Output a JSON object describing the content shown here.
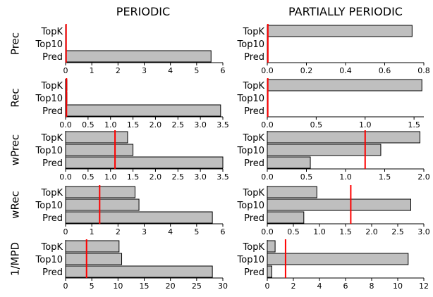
{
  "columns": [
    "PERIODIC",
    "PARTIALLY PERIODIC"
  ],
  "row_labels": [
    "Prec",
    "Rec",
    "wPrec",
    "wRec",
    "1/MPD"
  ],
  "colors": {
    "bar_fill": "#bfbfbf",
    "bar_stroke": "#000000",
    "marker": "#ff0000"
  },
  "chart_data": [
    {
      "type": "bar",
      "orientation": "horizontal",
      "row_label": "Prec",
      "column": "PERIODIC",
      "categories": [
        "TopK",
        "Top10",
        "Pred"
      ],
      "values": [
        0,
        0,
        5.55
      ],
      "reference_line": 0.02,
      "xlim": [
        0,
        6
      ],
      "ticks": [
        0,
        1,
        2,
        3,
        4,
        5,
        6
      ],
      "tick_labels": [
        "0",
        "1",
        "2",
        "3",
        "4",
        "5",
        "6"
      ]
    },
    {
      "type": "bar",
      "orientation": "horizontal",
      "row_label": "Prec",
      "column": "PARTIALLY PERIODIC",
      "categories": [
        "TopK",
        "Top10",
        "Pred"
      ],
      "values": [
        0.74,
        0,
        0
      ],
      "reference_line": 0.003,
      "xlim": [
        0,
        0.8
      ],
      "ticks": [
        0,
        0.2,
        0.4,
        0.6,
        0.8
      ],
      "tick_labels": [
        "0.0",
        "0.2",
        "0.4",
        "0.6",
        "0.8"
      ]
    },
    {
      "type": "bar",
      "orientation": "horizontal",
      "row_label": "Rec",
      "column": "PERIODIC",
      "categories": [
        "TopK",
        "Top10",
        "Pred"
      ],
      "values": [
        0.03,
        0.03,
        3.45
      ],
      "reference_line": 0.02,
      "xlim": [
        0,
        3.5
      ],
      "ticks": [
        0,
        0.5,
        1,
        1.5,
        2,
        2.5,
        3,
        3.5
      ],
      "tick_labels": [
        "0.0",
        "0.5",
        "1.0",
        "1.5",
        "2.0",
        "2.5",
        "3.0",
        "3.5"
      ]
    },
    {
      "type": "bar",
      "orientation": "horizontal",
      "row_label": "Rec",
      "column": "PARTIALLY PERIODIC",
      "categories": [
        "TopK",
        "Top10",
        "Pred"
      ],
      "values": [
        1.58,
        0,
        0
      ],
      "reference_line": 0.005,
      "xlim": [
        0,
        1.6
      ],
      "ticks": [
        0,
        0.5,
        1,
        1.5
      ],
      "tick_labels": [
        "0.0",
        "0.5",
        "1.0",
        "1.5"
      ]
    },
    {
      "type": "bar",
      "orientation": "horizontal",
      "row_label": "wPrec",
      "column": "PERIODIC",
      "categories": [
        "TopK",
        "Top10",
        "Pred"
      ],
      "values": [
        1.38,
        1.5,
        3.5
      ],
      "reference_line": 1.1,
      "xlim": [
        0,
        3.5
      ],
      "ticks": [
        0,
        0.5,
        1,
        1.5,
        2,
        2.5,
        3,
        3.5
      ],
      "tick_labels": [
        "0.0",
        "0.5",
        "1.0",
        "1.5",
        "2.0",
        "2.5",
        "3.0",
        "3.5"
      ]
    },
    {
      "type": "bar",
      "orientation": "horizontal",
      "row_label": "wPrec",
      "column": "PARTIALLY PERIODIC",
      "categories": [
        "TopK",
        "Top10",
        "Pred"
      ],
      "values": [
        1.95,
        1.45,
        0.55
      ],
      "reference_line": 1.25,
      "xlim": [
        0,
        2
      ],
      "ticks": [
        0,
        0.5,
        1,
        1.5,
        2
      ],
      "tick_labels": [
        "0.0",
        "0.5",
        "1.0",
        "1.5",
        "2.0"
      ]
    },
    {
      "type": "bar",
      "orientation": "horizontal",
      "row_label": "wRec",
      "column": "PERIODIC",
      "categories": [
        "TopK",
        "Top10",
        "Pred"
      ],
      "values": [
        2.65,
        2.8,
        5.6
      ],
      "reference_line": 1.3,
      "xlim": [
        0,
        6
      ],
      "ticks": [
        0,
        1,
        2,
        3,
        4,
        5,
        6
      ],
      "tick_labels": [
        "0",
        "1",
        "2",
        "3",
        "4",
        "5",
        "6"
      ]
    },
    {
      "type": "bar",
      "orientation": "horizontal",
      "row_label": "wRec",
      "column": "PARTIALLY PERIODIC",
      "categories": [
        "TopK",
        "Top10",
        "Pred"
      ],
      "values": [
        0.95,
        2.75,
        0.7
      ],
      "reference_line": 1.6,
      "xlim": [
        0,
        3
      ],
      "ticks": [
        0,
        0.5,
        1,
        1.5,
        2,
        2.5,
        3
      ],
      "tick_labels": [
        "0.0",
        "0.5",
        "1.0",
        "1.5",
        "2.0",
        "2.5",
        "3.0"
      ]
    },
    {
      "type": "bar",
      "orientation": "horizontal",
      "row_label": "1/MPD",
      "column": "PERIODIC",
      "categories": [
        "TopK",
        "Top10",
        "Pred"
      ],
      "values": [
        10.2,
        10.7,
        28
      ],
      "reference_line": 4,
      "xlim": [
        0,
        30
      ],
      "ticks": [
        0,
        5,
        10,
        15,
        20,
        25,
        30
      ],
      "tick_labels": [
        "0",
        "5",
        "10",
        "15",
        "20",
        "25",
        "30"
      ]
    },
    {
      "type": "bar",
      "orientation": "horizontal",
      "row_label": "1/MPD",
      "column": "PARTIALLY PERIODIC",
      "categories": [
        "TopK",
        "Top10",
        "Pred"
      ],
      "values": [
        0.6,
        10.8,
        0.35
      ],
      "reference_line": 1.4,
      "xlim": [
        0,
        12
      ],
      "ticks": [
        0,
        2,
        4,
        6,
        8,
        10,
        12
      ],
      "tick_labels": [
        "0",
        "2",
        "4",
        "6",
        "8",
        "10",
        "12"
      ]
    }
  ]
}
